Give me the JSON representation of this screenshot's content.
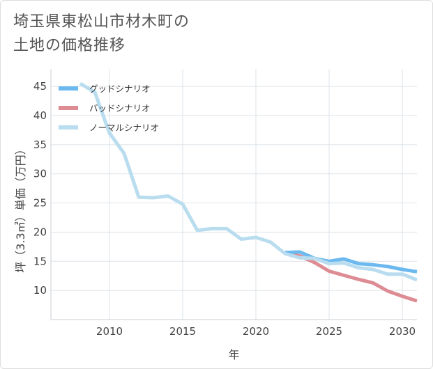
{
  "title": "埼玉県東松山市材木町の\n土地の価格推移",
  "chart_data": {
    "type": "line",
    "xlabel": "年",
    "ylabel": "坪（3.3㎡）単価（万円）",
    "xlim": [
      2006,
      2031
    ],
    "ylim": [
      5,
      48
    ],
    "x_ticks": [
      2010,
      2015,
      2020,
      2025,
      2030
    ],
    "y_ticks": [
      10,
      15,
      20,
      25,
      30,
      35,
      40,
      45
    ],
    "grid": true,
    "legend_position": "top-left",
    "series": [
      {
        "name": "グッドシナリオ",
        "color": "#6cb9ef",
        "x": [
          2022,
          2023,
          2024,
          2025,
          2026,
          2027,
          2028,
          2029,
          2030,
          2031
        ],
        "values": [
          16.5,
          16.6,
          15.5,
          15.0,
          15.4,
          14.6,
          14.4,
          14.1,
          13.6,
          13.2
        ]
      },
      {
        "name": "バッドシナリオ",
        "color": "#de8c93",
        "x": [
          2022,
          2023,
          2024,
          2025,
          2026,
          2027,
          2028,
          2029,
          2030,
          2031
        ],
        "values": [
          16.5,
          15.9,
          14.8,
          13.3,
          12.6,
          11.9,
          11.3,
          9.9,
          9.0,
          8.2
        ]
      },
      {
        "name": "ノーマルシナリオ",
        "color": "#b9ddef",
        "x": [
          2008,
          2009,
          2010,
          2011,
          2012,
          2013,
          2014,
          2015,
          2016,
          2017,
          2018,
          2019,
          2020,
          2021,
          2022,
          2023,
          2024,
          2025,
          2026,
          2027,
          2028,
          2029,
          2030,
          2031
        ],
        "values": [
          45.5,
          44.0,
          37.0,
          33.5,
          26.0,
          25.9,
          26.2,
          24.8,
          20.3,
          20.6,
          20.6,
          18.8,
          19.1,
          18.3,
          16.3,
          15.6,
          15.5,
          14.6,
          14.7,
          13.9,
          13.6,
          12.8,
          12.8,
          11.8
        ]
      }
    ]
  }
}
